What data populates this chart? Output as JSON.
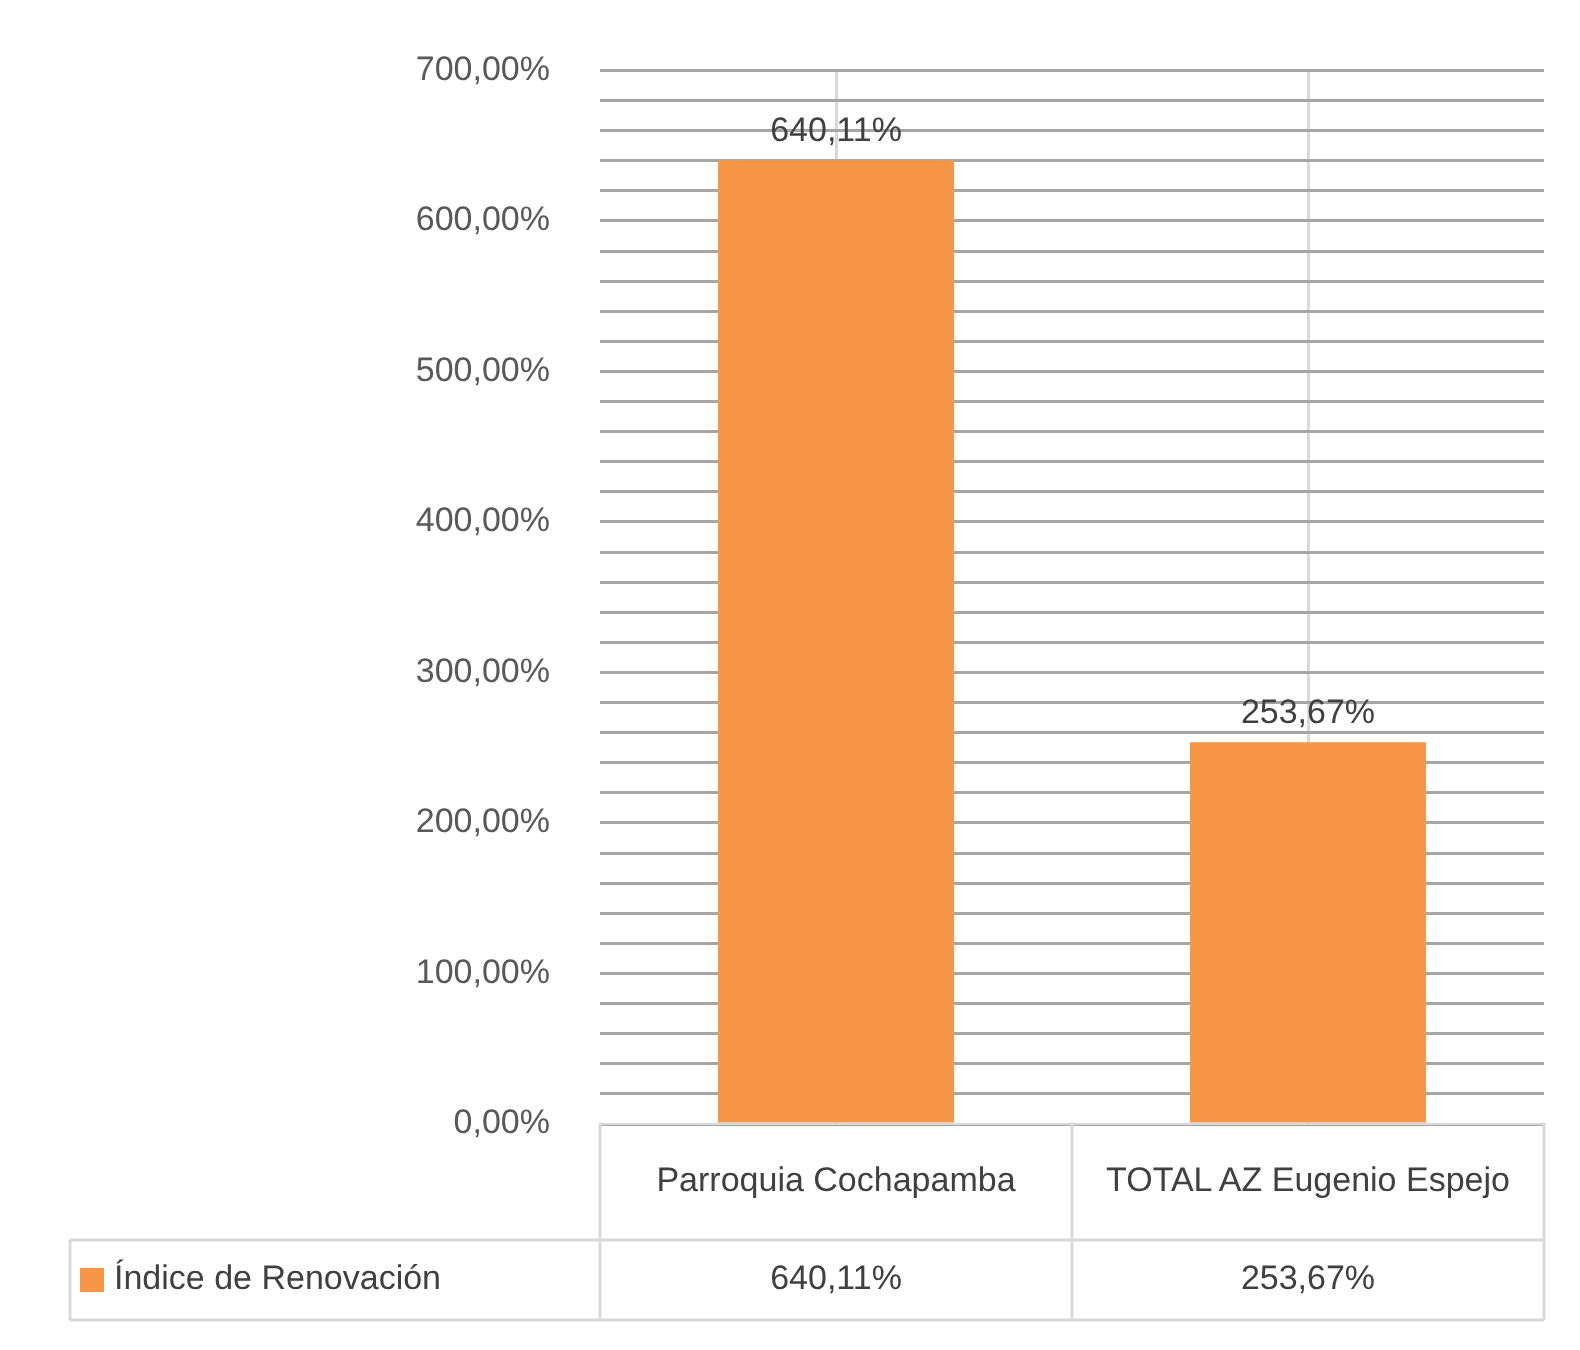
{
  "chart_data": {
    "type": "bar",
    "categories": [
      "Parroquia Cochapamba",
      "TOTAL AZ Eugenio Espejo"
    ],
    "series": [
      {
        "name": "Índice de Renovación",
        "color": "#f79646",
        "values": [
          640.11,
          253.67
        ],
        "value_labels": [
          "640,11%",
          "253,67%"
        ]
      }
    ],
    "ylim": [
      0,
      700
    ],
    "yticks": [
      {
        "value": 0,
        "label": "0,00%"
      },
      {
        "value": 20,
        "label": null
      },
      {
        "value": 40,
        "label": null
      },
      {
        "value": 60,
        "label": null
      },
      {
        "value": 80,
        "label": null
      },
      {
        "value": 100,
        "label": "100,00%"
      },
      {
        "value": 120,
        "label": null
      },
      {
        "value": 140,
        "label": null
      },
      {
        "value": 160,
        "label": null
      },
      {
        "value": 180,
        "label": null
      },
      {
        "value": 200,
        "label": "200,00%"
      },
      {
        "value": 220,
        "label": null
      },
      {
        "value": 240,
        "label": null
      },
      {
        "value": 260,
        "label": null
      },
      {
        "value": 280,
        "label": null
      },
      {
        "value": 300,
        "label": "300,00%"
      },
      {
        "value": 320,
        "label": null
      },
      {
        "value": 340,
        "label": null
      },
      {
        "value": 360,
        "label": null
      },
      {
        "value": 380,
        "label": null
      },
      {
        "value": 400,
        "label": "400,00%"
      },
      {
        "value": 420,
        "label": null
      },
      {
        "value": 440,
        "label": null
      },
      {
        "value": 460,
        "label": null
      },
      {
        "value": 480,
        "label": null
      },
      {
        "value": 500,
        "label": "500,00%"
      },
      {
        "value": 520,
        "label": null
      },
      {
        "value": 540,
        "label": null
      },
      {
        "value": 560,
        "label": null
      },
      {
        "value": 580,
        "label": null
      },
      {
        "value": 600,
        "label": "600,00%"
      },
      {
        "value": 620,
        "label": null
      },
      {
        "value": 640,
        "label": null
      },
      {
        "value": 660,
        "label": null
      },
      {
        "value": 680,
        "label": null
      },
      {
        "value": 700,
        "label": "700,00%"
      }
    ],
    "grid": true,
    "legend": "bottom"
  }
}
